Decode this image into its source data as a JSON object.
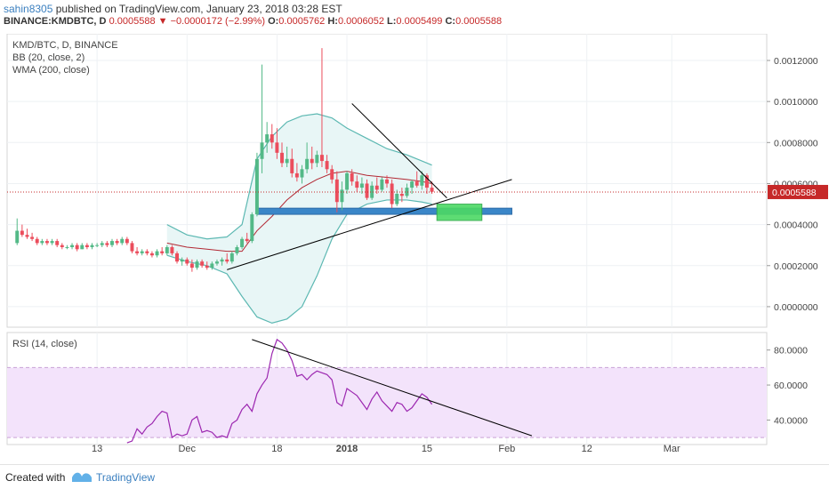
{
  "header": {
    "author": "sahin8305",
    "published_text": "published on TradingView.com, January 23, 2018 03:28 EST",
    "symbol": "BINANCE:KMDBTC, D",
    "last_price": "0.0005588",
    "change_arrow": "▼",
    "change": "−0.0000172 (−2.99%)",
    "o_label": "O:",
    "o_value": "0.0005762",
    "h_label": "H:",
    "h_value": "0.0006052",
    "l_label": "L:",
    "l_value": "0.0005499",
    "c_label": "C:",
    "c_value": "0.0005588"
  },
  "legend": {
    "symbol_line": "KMD/BTC, D, BINANCE",
    "bb_line": "BB (20, close, 2)",
    "wma_line": "WMA (200, close)",
    "rsi_line": "RSI (14, close)"
  },
  "footer": {
    "created_with": "Created with",
    "brand": "TradingView"
  },
  "colors": {
    "up_candle": "#53b987",
    "down_candle": "#eb4d5c",
    "bb_band": "#5cb8b2",
    "bb_fill": "#e8f6f6",
    "bb_basis": "#b22833",
    "rsi_line": "#9c27b0",
    "rsi_zone": "#f3e3fb",
    "support_zone": "#3a86c8",
    "target_box": "#4cd964",
    "trend_line": "#000000",
    "price_line": "#c62828"
  },
  "chart_data": [
    {
      "type": "candlestick",
      "title": "KMD/BTC, D, BINANCE",
      "x_ticks": [
        "13",
        "Dec",
        "18",
        "2018",
        "15",
        "Feb",
        "12",
        "Mar"
      ],
      "y_ticks": [
        "0.0012000",
        "0.0010000",
        "0.0008000",
        "0.0006000",
        "0.0004000",
        "0.0002000",
        "0.0000000"
      ],
      "ylim": [
        -0.0001,
        0.00133
      ],
      "current_price_label": "0.0005588",
      "current_price": 0.0005588,
      "x_start_day": 0,
      "x_end_day": 152,
      "candles": [
        {
          "d": 2,
          "o": 0.00031,
          "h": 0.00043,
          "l": 0.0003,
          "c": 0.00037
        },
        {
          "d": 3,
          "o": 0.00037,
          "h": 0.0004,
          "l": 0.00034,
          "c": 0.00035
        },
        {
          "d": 4,
          "o": 0.00035,
          "h": 0.00038,
          "l": 0.00033,
          "c": 0.00034
        },
        {
          "d": 5,
          "o": 0.00034,
          "h": 0.00036,
          "l": 0.00032,
          "c": 0.00033
        },
        {
          "d": 6,
          "o": 0.00033,
          "h": 0.00034,
          "l": 0.0003,
          "c": 0.00031
        },
        {
          "d": 7,
          "o": 0.00031,
          "h": 0.00033,
          "l": 0.0003,
          "c": 0.00032
        },
        {
          "d": 8,
          "o": 0.00032,
          "h": 0.00033,
          "l": 0.0003,
          "c": 0.00031
        },
        {
          "d": 9,
          "o": 0.00031,
          "h": 0.00033,
          "l": 0.0003,
          "c": 0.00032
        },
        {
          "d": 10,
          "o": 0.00032,
          "h": 0.00033,
          "l": 0.00029,
          "c": 0.0003
        },
        {
          "d": 11,
          "o": 0.0003,
          "h": 0.00031,
          "l": 0.00028,
          "c": 0.00029
        },
        {
          "d": 12,
          "o": 0.00029,
          "h": 0.0003,
          "l": 0.00028,
          "c": 0.00029
        },
        {
          "d": 13,
          "o": 0.00029,
          "h": 0.00031,
          "l": 0.00028,
          "c": 0.0003
        },
        {
          "d": 14,
          "o": 0.0003,
          "h": 0.00031,
          "l": 0.00027,
          "c": 0.00028
        },
        {
          "d": 15,
          "o": 0.00028,
          "h": 0.00031,
          "l": 0.00028,
          "c": 0.0003
        },
        {
          "d": 16,
          "o": 0.0003,
          "h": 0.00031,
          "l": 0.00028,
          "c": 0.00029
        },
        {
          "d": 17,
          "o": 0.00029,
          "h": 0.00031,
          "l": 0.00028,
          "c": 0.0003
        },
        {
          "d": 18,
          "o": 0.0003,
          "h": 0.00031,
          "l": 0.00029,
          "c": 0.0003
        },
        {
          "d": 19,
          "o": 0.0003,
          "h": 0.00032,
          "l": 0.00029,
          "c": 0.00031
        },
        {
          "d": 20,
          "o": 0.00031,
          "h": 0.00032,
          "l": 0.00029,
          "c": 0.0003
        },
        {
          "d": 21,
          "o": 0.0003,
          "h": 0.00033,
          "l": 0.00029,
          "c": 0.00032
        },
        {
          "d": 22,
          "o": 0.00032,
          "h": 0.00033,
          "l": 0.0003,
          "c": 0.00031
        },
        {
          "d": 23,
          "o": 0.00031,
          "h": 0.00034,
          "l": 0.0003,
          "c": 0.00033
        },
        {
          "d": 24,
          "o": 0.00033,
          "h": 0.00034,
          "l": 0.0003,
          "c": 0.00031
        },
        {
          "d": 25,
          "o": 0.00031,
          "h": 0.00032,
          "l": 0.00026,
          "c": 0.00027
        },
        {
          "d": 26,
          "o": 0.00027,
          "h": 0.00029,
          "l": 0.00025,
          "c": 0.00026
        },
        {
          "d": 27,
          "o": 0.00026,
          "h": 0.00028,
          "l": 0.00025,
          "c": 0.00027
        },
        {
          "d": 28,
          "o": 0.00027,
          "h": 0.00028,
          "l": 0.00025,
          "c": 0.00026
        },
        {
          "d": 29,
          "o": 0.00026,
          "h": 0.00027,
          "l": 0.00024,
          "c": 0.00025
        },
        {
          "d": 30,
          "o": 0.00025,
          "h": 0.00028,
          "l": 0.00024,
          "c": 0.00027
        },
        {
          "d": 31,
          "o": 0.00027,
          "h": 0.00029,
          "l": 0.00025,
          "c": 0.00026
        },
        {
          "d": 32,
          "o": 0.00026,
          "h": 0.0003,
          "l": 0.00025,
          "c": 0.00029
        },
        {
          "d": 33,
          "o": 0.00029,
          "h": 0.0003,
          "l": 0.00025,
          "c": 0.00026
        },
        {
          "d": 34,
          "o": 0.00026,
          "h": 0.00027,
          "l": 0.00021,
          "c": 0.00022
        },
        {
          "d": 35,
          "o": 0.00022,
          "h": 0.00024,
          "l": 0.0002,
          "c": 0.00023
        },
        {
          "d": 36,
          "o": 0.00023,
          "h": 0.00024,
          "l": 0.0002,
          "c": 0.00021
        },
        {
          "d": 37,
          "o": 0.00021,
          "h": 0.00023,
          "l": 0.00017,
          "c": 0.00019
        },
        {
          "d": 38,
          "o": 0.00019,
          "h": 0.00023,
          "l": 0.00018,
          "c": 0.00022
        },
        {
          "d": 39,
          "o": 0.00022,
          "h": 0.00023,
          "l": 0.00019,
          "c": 0.0002
        },
        {
          "d": 40,
          "o": 0.0002,
          "h": 0.00022,
          "l": 0.00018,
          "c": 0.00019
        },
        {
          "d": 41,
          "o": 0.00019,
          "h": 0.00022,
          "l": 0.00018,
          "c": 0.00021
        },
        {
          "d": 42,
          "o": 0.00021,
          "h": 0.00023,
          "l": 0.0002,
          "c": 0.00022
        },
        {
          "d": 43,
          "o": 0.00022,
          "h": 0.00024,
          "l": 0.0002,
          "c": 0.00023
        },
        {
          "d": 44,
          "o": 0.00023,
          "h": 0.00026,
          "l": 0.00021,
          "c": 0.00022
        },
        {
          "d": 45,
          "o": 0.00022,
          "h": 0.00027,
          "l": 0.00021,
          "c": 0.00026
        },
        {
          "d": 46,
          "o": 0.00026,
          "h": 0.0003,
          "l": 0.00025,
          "c": 0.00029
        },
        {
          "d": 47,
          "o": 0.00029,
          "h": 0.00034,
          "l": 0.00028,
          "c": 0.00033
        },
        {
          "d": 48,
          "o": 0.00033,
          "h": 0.00036,
          "l": 0.00031,
          "c": 0.00032
        },
        {
          "d": 49,
          "o": 0.00032,
          "h": 0.00046,
          "l": 0.00031,
          "c": 0.00045
        },
        {
          "d": 50,
          "o": 0.00045,
          "h": 0.00075,
          "l": 0.00044,
          "c": 0.00072
        },
        {
          "d": 51,
          "o": 0.00072,
          "h": 0.00118,
          "l": 0.00065,
          "c": 0.0008
        },
        {
          "d": 52,
          "o": 0.0008,
          "h": 0.0009,
          "l": 0.00075,
          "c": 0.00084
        },
        {
          "d": 53,
          "o": 0.00084,
          "h": 0.00089,
          "l": 0.00077,
          "c": 0.0008
        },
        {
          "d": 54,
          "o": 0.0008,
          "h": 0.00087,
          "l": 0.00072,
          "c": 0.00075
        },
        {
          "d": 55,
          "o": 0.00075,
          "h": 0.0008,
          "l": 0.00068,
          "c": 0.0007
        },
        {
          "d": 56,
          "o": 0.0007,
          "h": 0.00078,
          "l": 0.00068,
          "c": 0.00072
        },
        {
          "d": 57,
          "o": 0.00072,
          "h": 0.00077,
          "l": 0.00063,
          "c": 0.00065
        },
        {
          "d": 58,
          "o": 0.00065,
          "h": 0.0007,
          "l": 0.00061,
          "c": 0.00063
        },
        {
          "d": 59,
          "o": 0.00063,
          "h": 0.00069,
          "l": 0.0006,
          "c": 0.00067
        },
        {
          "d": 60,
          "o": 0.00067,
          "h": 0.0008,
          "l": 0.00065,
          "c": 0.00072
        },
        {
          "d": 61,
          "o": 0.00072,
          "h": 0.00078,
          "l": 0.00067,
          "c": 0.0007
        },
        {
          "d": 62,
          "o": 0.0007,
          "h": 0.00076,
          "l": 0.00068,
          "c": 0.00074
        },
        {
          "d": 63,
          "o": 0.00074,
          "h": 0.00126,
          "l": 0.00068,
          "c": 0.00071
        },
        {
          "d": 64,
          "o": 0.00071,
          "h": 0.00074,
          "l": 0.00065,
          "c": 0.00067
        },
        {
          "d": 65,
          "o": 0.00067,
          "h": 0.00069,
          "l": 0.0006,
          "c": 0.00062
        },
        {
          "d": 66,
          "o": 0.00062,
          "h": 0.00066,
          "l": 0.00046,
          "c": 0.00051
        },
        {
          "d": 67,
          "o": 0.00051,
          "h": 0.00061,
          "l": 0.00047,
          "c": 0.00057
        },
        {
          "d": 68,
          "o": 0.00057,
          "h": 0.00066,
          "l": 0.00055,
          "c": 0.00065
        },
        {
          "d": 69,
          "o": 0.00065,
          "h": 0.00067,
          "l": 0.00059,
          "c": 0.00061
        },
        {
          "d": 70,
          "o": 0.00061,
          "h": 0.00064,
          "l": 0.00056,
          "c": 0.00058
        },
        {
          "d": 71,
          "o": 0.00058,
          "h": 0.00063,
          "l": 0.00055,
          "c": 0.0006
        },
        {
          "d": 72,
          "o": 0.0006,
          "h": 0.00062,
          "l": 0.00052,
          "c": 0.00053
        },
        {
          "d": 73,
          "o": 0.00053,
          "h": 0.00061,
          "l": 0.00052,
          "c": 0.00059
        },
        {
          "d": 74,
          "o": 0.00059,
          "h": 0.00063,
          "l": 0.00055,
          "c": 0.00057
        },
        {
          "d": 75,
          "o": 0.00057,
          "h": 0.00063,
          "l": 0.00056,
          "c": 0.00062
        },
        {
          "d": 76,
          "o": 0.00062,
          "h": 0.00064,
          "l": 0.00058,
          "c": 0.0006
        },
        {
          "d": 77,
          "o": 0.0006,
          "h": 0.00062,
          "l": 0.00048,
          "c": 0.0005
        },
        {
          "d": 78,
          "o": 0.0005,
          "h": 0.00057,
          "l": 0.00049,
          "c": 0.00055
        },
        {
          "d": 79,
          "o": 0.00055,
          "h": 0.00058,
          "l": 0.00051,
          "c": 0.00054
        },
        {
          "d": 80,
          "o": 0.00054,
          "h": 0.0006,
          "l": 0.00053,
          "c": 0.00058
        },
        {
          "d": 81,
          "o": 0.00058,
          "h": 0.00062,
          "l": 0.00055,
          "c": 0.00061
        },
        {
          "d": 82,
          "o": 0.00061,
          "h": 0.00066,
          "l": 0.00058,
          "c": 0.00059
        },
        {
          "d": 83,
          "o": 0.00059,
          "h": 0.00066,
          "l": 0.00057,
          "c": 0.00064
        },
        {
          "d": 84,
          "o": 0.00064,
          "h": 0.00065,
          "l": 0.00055,
          "c": 0.00058
        },
        {
          "d": 85,
          "o": 0.00058,
          "h": 0.00061,
          "l": 0.00055,
          "c": 0.00056
        }
      ],
      "bb_upper": [
        [
          32,
          0.0004
        ],
        [
          36,
          0.00035
        ],
        [
          40,
          0.00033
        ],
        [
          44,
          0.00034
        ],
        [
          47,
          0.0004
        ],
        [
          50,
          0.00072
        ],
        [
          53,
          0.00083
        ],
        [
          56,
          0.0009
        ],
        [
          59,
          0.00093
        ],
        [
          62,
          0.00094
        ],
        [
          65,
          0.00092
        ],
        [
          68,
          0.00087
        ],
        [
          72,
          0.00082
        ],
        [
          76,
          0.00077
        ],
        [
          80,
          0.00074
        ],
        [
          83,
          0.00071
        ],
        [
          85,
          0.00069
        ]
      ],
      "bb_lower": [
        [
          32,
          0.00025
        ],
        [
          36,
          0.00022
        ],
        [
          40,
          0.0002
        ],
        [
          44,
          0.00016
        ],
        [
          47,
          5e-05
        ],
        [
          50,
          -5e-05
        ],
        [
          53,
          -8e-05
        ],
        [
          56,
          -6e-05
        ],
        [
          59,
          0.0
        ],
        [
          62,
          0.00015
        ],
        [
          65,
          0.00033
        ],
        [
          68,
          0.00045
        ],
        [
          72,
          0.0005
        ],
        [
          76,
          0.00052
        ],
        [
          80,
          0.00052
        ],
        [
          83,
          0.00051
        ],
        [
          85,
          0.0005
        ]
      ],
      "bb_basis": [
        [
          32,
          0.00031
        ],
        [
          36,
          0.00029
        ],
        [
          40,
          0.00028
        ],
        [
          44,
          0.00027
        ],
        [
          47,
          0.00027
        ],
        [
          50,
          0.00037
        ],
        [
          53,
          0.00044
        ],
        [
          56,
          0.00052
        ],
        [
          59,
          0.00058
        ],
        [
          62,
          0.00062
        ],
        [
          65,
          0.00065
        ],
        [
          68,
          0.00066
        ],
        [
          72,
          0.00064
        ],
        [
          76,
          0.00063
        ],
        [
          80,
          0.00062
        ],
        [
          83,
          0.00061
        ],
        [
          85,
          0.0006
        ]
      ],
      "trendlines": [
        [
          [
            44,
            0.00018
          ],
          [
            101,
            0.00062
          ]
        ],
        [
          [
            69,
            0.00099
          ],
          [
            88,
            0.00053
          ]
        ]
      ],
      "support_zone": {
        "from_day": 50,
        "to_day": 101,
        "low": 0.00045,
        "high": 0.00048
      },
      "target_box": {
        "from_day": 86,
        "to_day": 95,
        "low": 0.00042,
        "high": 0.0005
      }
    },
    {
      "type": "line",
      "title": "RSI (14, close)",
      "y_ticks": [
        "80.0000",
        "60.0000",
        "40.0000"
      ],
      "ylim": [
        26,
        90
      ],
      "overbought": 70,
      "oversold": 30,
      "x": [
        24,
        25,
        26,
        27,
        28,
        29,
        30,
        31,
        32,
        33,
        34,
        35,
        36,
        37,
        38,
        39,
        40,
        41,
        42,
        43,
        44,
        45,
        46,
        47,
        48,
        49,
        50,
        51,
        52,
        53,
        54,
        55,
        56,
        57,
        58,
        59,
        60,
        61,
        62,
        63,
        64,
        65,
        66,
        67,
        68,
        69,
        70,
        71,
        72,
        73,
        74,
        75,
        76,
        77,
        78,
        79,
        80,
        81,
        82,
        83,
        84,
        85
      ],
      "values": [
        27,
        28,
        35,
        32,
        36,
        38,
        42,
        45,
        44,
        30,
        32,
        31,
        32,
        40,
        42,
        33,
        34,
        33,
        30,
        31,
        30,
        38,
        40,
        46,
        49,
        45,
        55,
        60,
        64,
        78,
        86,
        84,
        80,
        74,
        65,
        66,
        63,
        66,
        68,
        67,
        66,
        63,
        50,
        48,
        58,
        56,
        54,
        50,
        46,
        52,
        56,
        51,
        48,
        45,
        50,
        49,
        45,
        47,
        51,
        55,
        53,
        49
      ],
      "trendline": [
        [
          49,
          86
        ],
        [
          105,
          31
        ]
      ]
    }
  ]
}
